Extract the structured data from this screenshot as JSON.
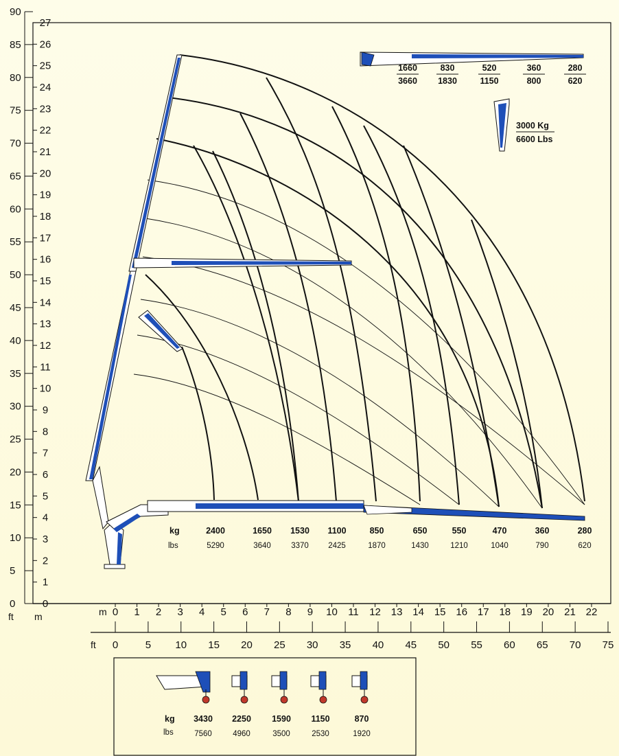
{
  "axes": {
    "left_outer_unit": "ft",
    "left_inner_unit": "m",
    "ft_ticks": [
      "0",
      "5",
      "10",
      "15",
      "20",
      "25",
      "30",
      "35",
      "40",
      "45",
      "50",
      "55",
      "60",
      "65",
      "70",
      "75",
      "80",
      "85",
      "90"
    ],
    "m_ticks": [
      "0",
      "1",
      "2",
      "3",
      "4",
      "5",
      "6",
      "7",
      "8",
      "9",
      "10",
      "11",
      "12",
      "13",
      "14",
      "15",
      "16",
      "17",
      "18",
      "19",
      "20",
      "21",
      "22",
      "23",
      "24",
      "25",
      "26",
      "27"
    ],
    "bottom_m_unit": "m",
    "bottom_ft_unit": "ft",
    "bottom_m_ticks": [
      "0",
      "1",
      "2",
      "3",
      "4",
      "5",
      "6",
      "7",
      "8",
      "9",
      "10",
      "11",
      "12",
      "13",
      "14",
      "15",
      "16",
      "17",
      "18",
      "19",
      "20",
      "21",
      "22"
    ],
    "bottom_ft_ticks": [
      "0",
      "5",
      "10",
      "15",
      "20",
      "25",
      "30",
      "35",
      "40",
      "45",
      "50",
      "55",
      "60",
      "65",
      "70",
      "75"
    ]
  },
  "main_capacity": {
    "kg_label": "kg",
    "lbs_label": "lbs",
    "kg": [
      "2400",
      "1650",
      "1530",
      "1100",
      "850",
      "650",
      "550",
      "470",
      "360",
      "280"
    ],
    "lbs": [
      "5290",
      "3640",
      "3370",
      "2425",
      "1870",
      "1430",
      "1210",
      "1040",
      "790",
      "620"
    ]
  },
  "jib_capacity": {
    "kg": [
      "1660",
      "830",
      "520",
      "360",
      "280"
    ],
    "lbs": [
      "3660",
      "1830",
      "1150",
      "800",
      "620"
    ]
  },
  "winch": {
    "kg_label": "3000 Kg",
    "lbs_label": "6600 Lbs"
  },
  "inset_capacity": {
    "kg_label": "kg",
    "lbs_label": "lbs",
    "kg": [
      "3430",
      "2250",
      "1590",
      "1150",
      "870"
    ],
    "lbs": [
      "7560",
      "4960",
      "3500",
      "2530",
      "1920"
    ]
  },
  "colors": {
    "boom_blue": "#1e4fb8",
    "boom_white": "#ffffff",
    "outline": "#111111",
    "background": "#fdfbe3",
    "hook_red": "#c0392b"
  }
}
